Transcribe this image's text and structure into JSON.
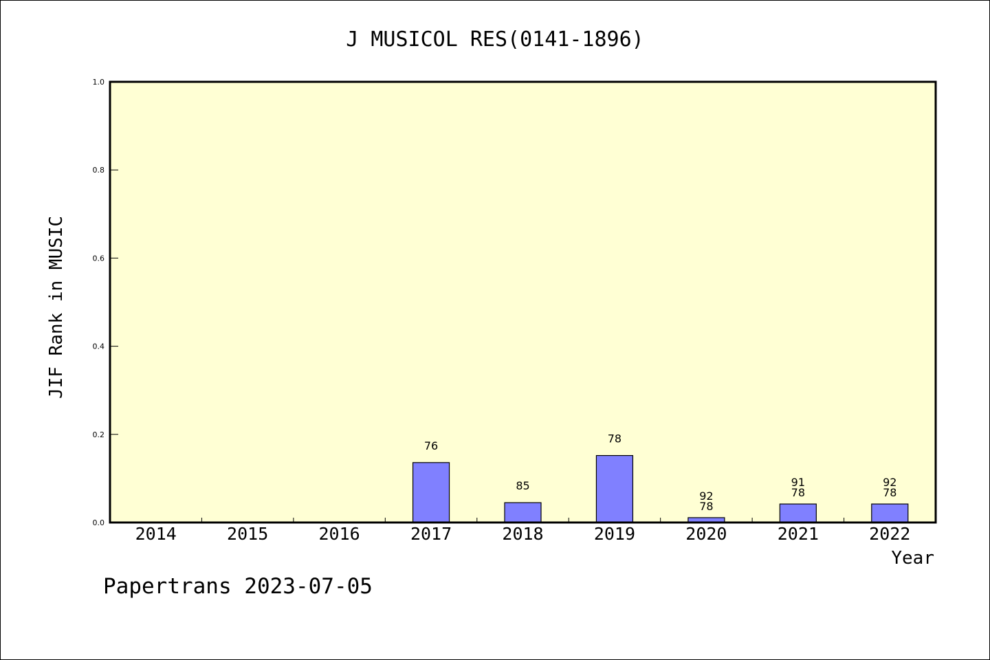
{
  "chart_data": {
    "type": "bar",
    "title": "J MUSICOL RES(0141-1896)",
    "xlabel": "Year",
    "ylabel": "JIF Rank in MUSIC",
    "ylim": [
      0,
      1.0
    ],
    "yticks": [
      "0.0",
      "0.2",
      "0.4",
      "0.6",
      "0.8",
      "1.0"
    ],
    "categories": [
      "2014",
      "2015",
      "2016",
      "2017",
      "2018",
      "2019",
      "2020",
      "2021",
      "2022"
    ],
    "values": [
      null,
      null,
      null,
      0.136,
      0.045,
      0.152,
      0.011,
      0.042,
      0.042
    ],
    "labels": [
      [],
      [],
      [],
      [
        "76"
      ],
      [
        "85"
      ],
      [
        "78"
      ],
      [
        "92",
        "78"
      ],
      [
        "91",
        "78"
      ],
      [
        "92",
        "78"
      ]
    ],
    "grid": false,
    "colors": {
      "plot_background": "#ffffd4",
      "bar_fill": "#8080ff",
      "bar_stroke": "#000000"
    }
  },
  "footer": {
    "credit": "Papertrans 2023-07-05"
  }
}
